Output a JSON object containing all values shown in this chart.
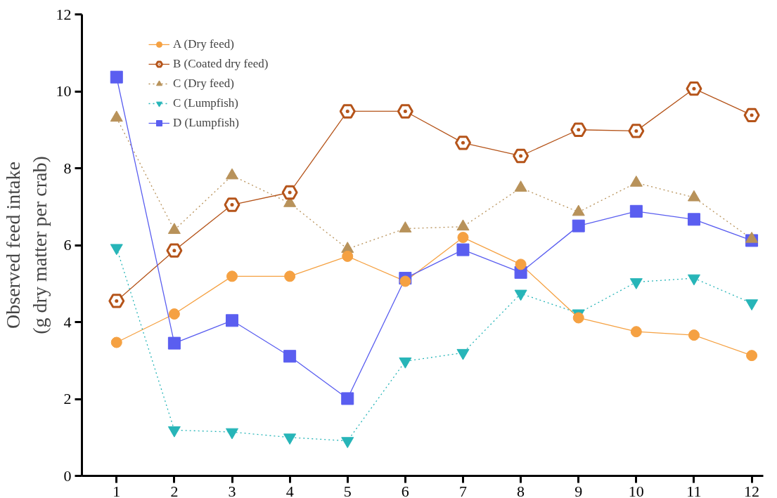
{
  "chart_data": {
    "type": "line",
    "ylabel": "Observed feed intake\n(g dry matter per crab)",
    "x": [
      1,
      2,
      3,
      4,
      5,
      6,
      7,
      8,
      9,
      10,
      11,
      12
    ],
    "xlim": [
      0.4,
      12.2
    ],
    "xticks": [
      1,
      2,
      3,
      4,
      5,
      6,
      7,
      8,
      9,
      10,
      11,
      12
    ],
    "ylim": [
      0,
      12
    ],
    "yticks": [
      0,
      2,
      4,
      6,
      8,
      10,
      12
    ],
    "grid": false,
    "legend": "top left",
    "series": [
      {
        "name": "A (Dry feed)",
        "color": "#f5a142",
        "marker": "circle",
        "line_style": "solid",
        "values": [
          3.47,
          4.21,
          5.19,
          5.19,
          5.71,
          5.06,
          6.2,
          5.5,
          4.11,
          3.75,
          3.66,
          3.13
        ]
      },
      {
        "name": "B (Coated dry feed)",
        "color": "#b5541a",
        "marker": "circle",
        "line_style": "solid",
        "values": [
          4.55,
          5.86,
          7.05,
          7.37,
          9.48,
          9.48,
          8.66,
          8.32,
          9.0,
          8.97,
          10.07,
          9.38
        ]
      },
      {
        "name": "C (Dry feed)",
        "color": "#b8925a",
        "marker": "triangle",
        "line_style": "dotted",
        "values": [
          9.31,
          6.39,
          7.81,
          7.09,
          5.9,
          6.43,
          6.48,
          7.49,
          6.86,
          7.62,
          7.24,
          6.16
        ]
      },
      {
        "name": "C (Lumpfish)",
        "color": "#27b5b8",
        "marker": "triangle",
        "line_style": "dotted",
        "values": [
          5.93,
          1.19,
          1.14,
          1.0,
          0.91,
          2.98,
          3.2,
          4.74,
          4.23,
          5.04,
          5.14,
          4.49
        ]
      },
      {
        "name": "D (Lumpfish)",
        "color": "#5a5ef0",
        "marker": "square",
        "line_style": "solid",
        "values": [
          10.37,
          3.45,
          4.04,
          3.11,
          2.01,
          5.14,
          5.88,
          5.29,
          6.5,
          6.88,
          6.67,
          6.12
        ]
      }
    ]
  }
}
